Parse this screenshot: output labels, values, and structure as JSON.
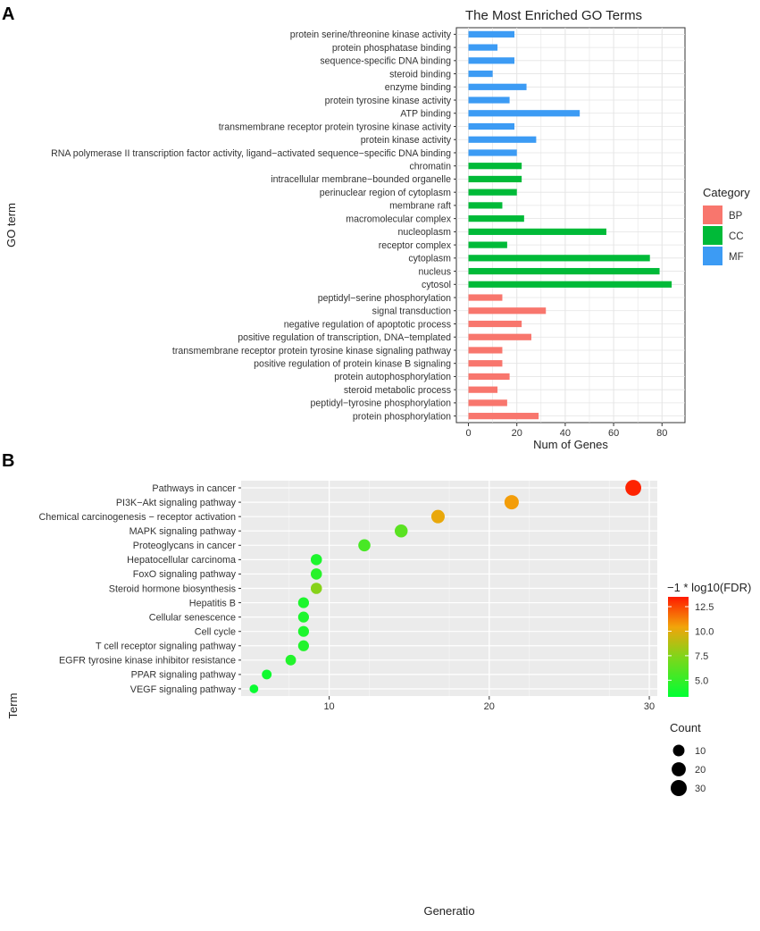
{
  "panels": {
    "a": {
      "letter": "A",
      "chart_data": {
        "type": "bar",
        "orientation": "horizontal",
        "title": "The Most Enriched GO Terms",
        "xlabel": "Num of Genes",
        "ylabel": "GO term",
        "xlim": [
          0,
          85
        ],
        "xticks": [
          0,
          20,
          40,
          60,
          80
        ],
        "legend_title": "Category",
        "legend": [
          {
            "label": "BP",
            "color": "#f8766d"
          },
          {
            "label": "CC",
            "color": "#00ba38"
          },
          {
            "label": "MF",
            "color": "#3c9bf4"
          }
        ],
        "bars": [
          {
            "term": "protein serine/threonine kinase activity",
            "value": 19,
            "category": "MF"
          },
          {
            "term": "protein phosphatase binding",
            "value": 12,
            "category": "MF"
          },
          {
            "term": "sequence-specific DNA binding",
            "value": 19,
            "category": "MF"
          },
          {
            "term": "steroid binding",
            "value": 10,
            "category": "MF"
          },
          {
            "term": "enzyme binding",
            "value": 24,
            "category": "MF"
          },
          {
            "term": "protein tyrosine kinase activity",
            "value": 17,
            "category": "MF"
          },
          {
            "term": "ATP binding",
            "value": 46,
            "category": "MF"
          },
          {
            "term": "transmembrane receptor protein tyrosine kinase activity",
            "value": 19,
            "category": "MF"
          },
          {
            "term": "protein kinase activity",
            "value": 28,
            "category": "MF"
          },
          {
            "term": "RNA polymerase II transcription factor activity, ligand−activated sequence−specific DNA binding",
            "value": 20,
            "category": "MF"
          },
          {
            "term": "chromatin",
            "value": 22,
            "category": "CC"
          },
          {
            "term": "intracellular membrane−bounded organelle",
            "value": 22,
            "category": "CC"
          },
          {
            "term": "perinuclear region of cytoplasm",
            "value": 20,
            "category": "CC"
          },
          {
            "term": "membrane raft",
            "value": 14,
            "category": "CC"
          },
          {
            "term": "macromolecular complex",
            "value": 23,
            "category": "CC"
          },
          {
            "term": "nucleoplasm",
            "value": 57,
            "category": "CC"
          },
          {
            "term": "receptor complex",
            "value": 16,
            "category": "CC"
          },
          {
            "term": "cytoplasm",
            "value": 75,
            "category": "CC"
          },
          {
            "term": "nucleus",
            "value": 79,
            "category": "CC"
          },
          {
            "term": "cytosol",
            "value": 84,
            "category": "CC"
          },
          {
            "term": "peptidyl−serine phosphorylation",
            "value": 14,
            "category": "BP"
          },
          {
            "term": "signal transduction",
            "value": 32,
            "category": "BP"
          },
          {
            "term": "negative regulation of apoptotic process",
            "value": 22,
            "category": "BP"
          },
          {
            "term": "positive regulation of transcription, DNA−templated",
            "value": 26,
            "category": "BP"
          },
          {
            "term": "transmembrane receptor protein tyrosine kinase signaling pathway",
            "value": 14,
            "category": "BP"
          },
          {
            "term": "positive regulation of protein kinase B signaling",
            "value": 14,
            "category": "BP"
          },
          {
            "term": "protein autophosphorylation",
            "value": 17,
            "category": "BP"
          },
          {
            "term": "steroid metabolic process",
            "value": 12,
            "category": "BP"
          },
          {
            "term": "peptidyl−tyrosine phosphorylation",
            "value": 16,
            "category": "BP"
          },
          {
            "term": "protein phosphorylation",
            "value": 29,
            "category": "BP"
          }
        ]
      }
    },
    "b": {
      "letter": "B",
      "chart_data": {
        "type": "scatter",
        "xlabel": "Generatio",
        "ylabel": "Term",
        "xlim": [
          4.5,
          30.5
        ],
        "xticks": [
          10,
          20,
          30
        ],
        "color_legend_title": "−1 * log10(FDR)",
        "color_range": [
          3.3,
          13.5
        ],
        "color_ticks": [
          5.0,
          7.5,
          10.0,
          12.5
        ],
        "color_tick_labels": [
          "5.0",
          "7.5",
          "10.0",
          "12.5"
        ],
        "color_low": "#00ff33",
        "color_high": "#ff0000",
        "size_legend_title": "Count",
        "size_range": [
          5,
          30
        ],
        "size_ticks": [
          10,
          20,
          30
        ],
        "points": [
          {
            "term": "Pathways in cancer",
            "x": 29,
            "count": 29,
            "fdr": 13.3
          },
          {
            "term": "PI3K−Akt signaling pathway",
            "x": 21.4,
            "count": 21,
            "fdr": 10.6
          },
          {
            "term": "Chemical carcinogenesis − receptor activation",
            "x": 16.8,
            "count": 17,
            "fdr": 10.2
          },
          {
            "term": "MAPK signaling pathway",
            "x": 14.5,
            "count": 15,
            "fdr": 6.2
          },
          {
            "term": "Proteoglycans in cancer",
            "x": 12.2,
            "count": 12,
            "fdr": 5.6
          },
          {
            "term": "Hepatocellular carcinoma",
            "x": 9.2,
            "count": 9,
            "fdr": 4.2
          },
          {
            "term": "FoxO signaling pathway",
            "x": 9.2,
            "count": 9,
            "fdr": 4.6
          },
          {
            "term": "Steroid hormone biosynthesis",
            "x": 9.2,
            "count": 9,
            "fdr": 7.6
          },
          {
            "term": "Hepatitis B",
            "x": 8.4,
            "count": 8,
            "fdr": 4.2
          },
          {
            "term": "Cellular senescence",
            "x": 8.4,
            "count": 8,
            "fdr": 4.2
          },
          {
            "term": "Cell cycle",
            "x": 8.4,
            "count": 8,
            "fdr": 4.2
          },
          {
            "term": "T cell receptor signaling pathway",
            "x": 8.4,
            "count": 8,
            "fdr": 4.4
          },
          {
            "term": "EGFR tyrosine kinase inhibitor resistance",
            "x": 7.6,
            "count": 7,
            "fdr": 4.4
          },
          {
            "term": "PPAR signaling pathway",
            "x": 6.1,
            "count": 5,
            "fdr": 3.8
          },
          {
            "term": "VEGF signaling pathway",
            "x": 5.3,
            "count": 3,
            "fdr": 3.6
          }
        ]
      }
    }
  }
}
